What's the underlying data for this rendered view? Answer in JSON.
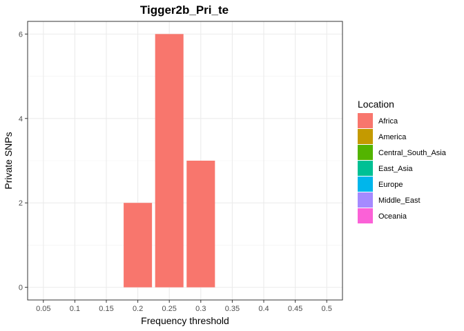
{
  "chart_data": {
    "type": "bar",
    "title": "Tigger2b_Pri_te",
    "xlabel": "Frequency threshold",
    "ylabel": "Private SNPs",
    "x_ticks": [
      "0.05",
      "0.1",
      "0.15",
      "0.2",
      "0.25",
      "0.3",
      "0.35",
      "0.4",
      "0.45",
      "0.5"
    ],
    "y_ticks": [
      "0",
      "2",
      "4",
      "6"
    ],
    "ylim": [
      -0.3,
      6.3
    ],
    "grid": true,
    "bars": [
      {
        "x": 0.2,
        "value": 2,
        "series": "Africa"
      },
      {
        "x": 0.25,
        "value": 6,
        "series": "Africa"
      },
      {
        "x": 0.3,
        "value": 3,
        "series": "Africa"
      }
    ],
    "legend": {
      "title": "Location",
      "position": "right",
      "items": [
        {
          "label": "Africa",
          "color": "#F8766D"
        },
        {
          "label": "America",
          "color": "#C49A00"
        },
        {
          "label": "Central_South_Asia",
          "color": "#53B400"
        },
        {
          "label": "East_Asia",
          "color": "#00C094"
        },
        {
          "label": "Europe",
          "color": "#00B6EB"
        },
        {
          "label": "Middle_East",
          "color": "#A58AFF"
        },
        {
          "label": "Oceania",
          "color": "#FB61D7"
        }
      ]
    }
  }
}
